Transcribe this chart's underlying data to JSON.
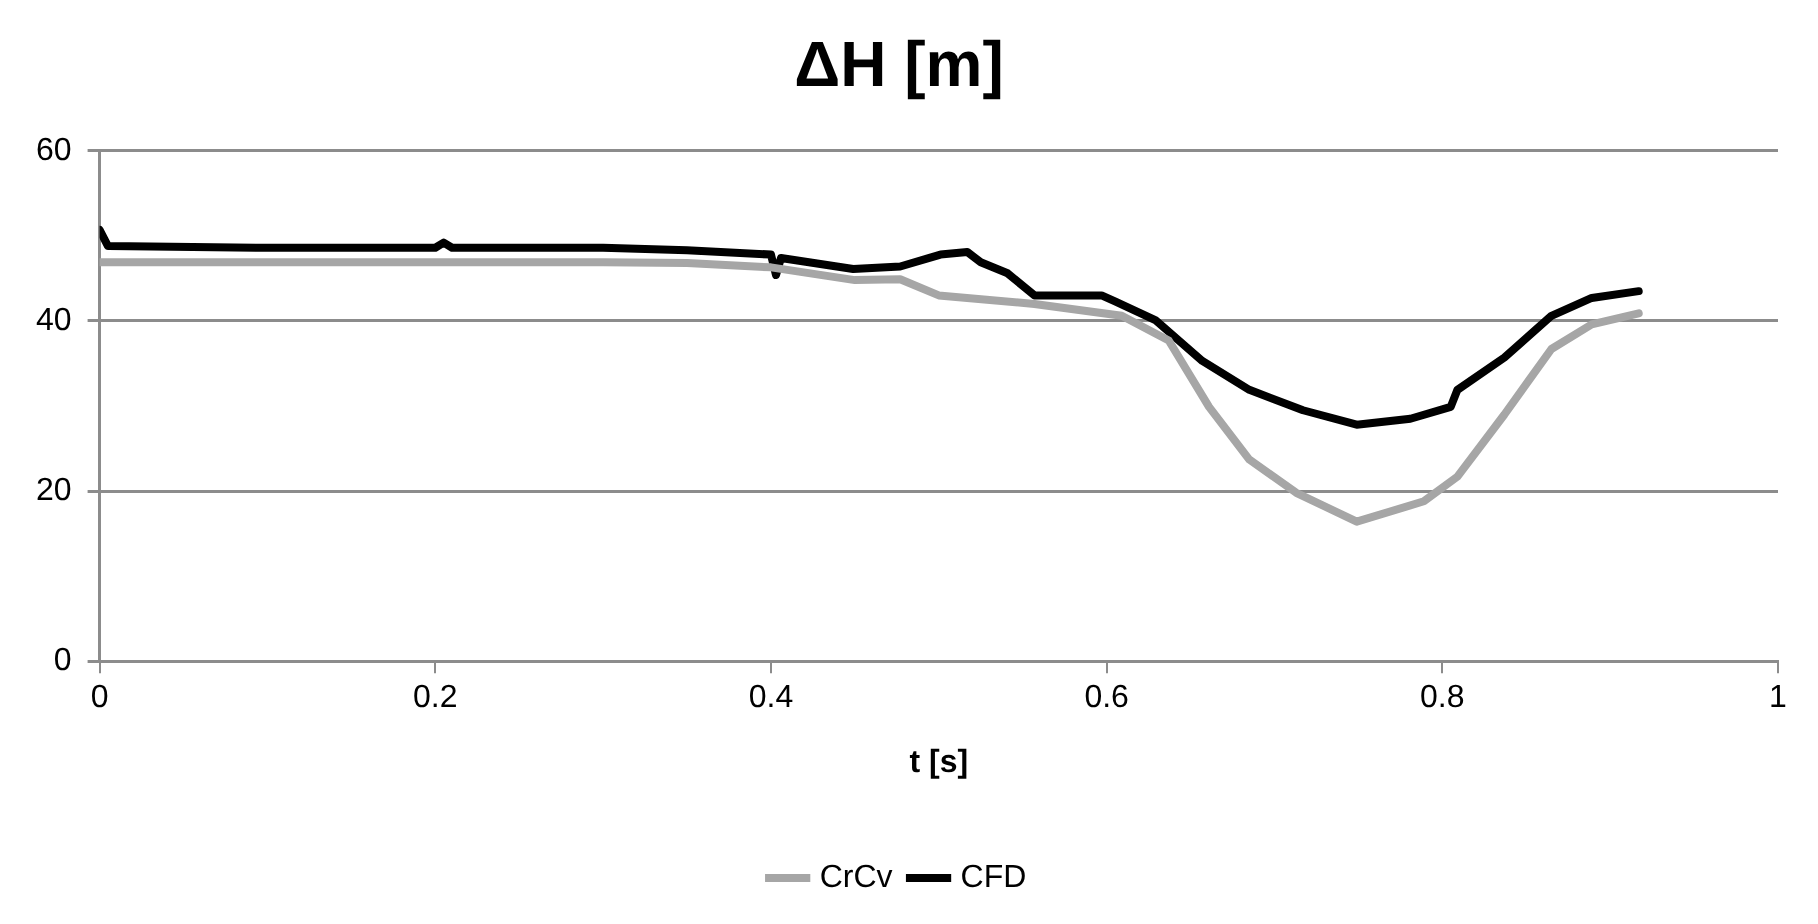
{
  "chart_data": {
    "type": "line",
    "title": "ΔH [m]",
    "xlabel": "t [s]",
    "xlim": [
      0,
      1
    ],
    "xticks": [
      0,
      0.2,
      0.4,
      0.6,
      0.8,
      1
    ],
    "ylim": [
      0,
      60
    ],
    "yticks": [
      0,
      20,
      40,
      60
    ],
    "grid": "y",
    "legend": "bottom",
    "marker": "none",
    "line_style": "solid",
    "series": [
      {
        "name": "CrCv",
        "color": "#a6a6a6",
        "x": [
          0,
          0.1,
          0.2,
          0.3,
          0.35,
          0.4,
          0.45,
          0.477,
          0.5,
          0.557,
          0.609,
          0.637,
          0.661,
          0.685,
          0.713,
          0.749,
          0.789,
          0.809,
          0.837,
          0.865,
          0.889,
          0.917
        ],
        "values": [
          46.9,
          46.9,
          46.9,
          46.9,
          46.8,
          46.3,
          44.8,
          44.9,
          43,
          42,
          40.6,
          37.7,
          29.9,
          23.7,
          19.8,
          16.4,
          18.8,
          21.7,
          29,
          36.7,
          39.6,
          40.9
        ]
      },
      {
        "name": "CFD",
        "color": "#000000",
        "x": [
          0,
          0.005,
          0.1,
          0.2,
          0.205,
          0.21,
          0.3,
          0.35,
          0.4,
          0.403,
          0.406,
          0.449,
          0.477,
          0.501,
          0.517,
          0.525,
          0.541,
          0.557,
          0.597,
          0.605,
          0.629,
          0.657,
          0.685,
          0.717,
          0.749,
          0.781,
          0.805,
          0.809,
          0.837,
          0.865,
          0.889,
          0.917
        ],
        "values": [
          50.7,
          48.8,
          48.6,
          48.6,
          49.2,
          48.6,
          48.6,
          48.3,
          47.8,
          45.4,
          47.4,
          46.1,
          46.4,
          47.8,
          48.1,
          46.9,
          45.6,
          43,
          43,
          42.3,
          40.1,
          35.3,
          31.9,
          29.5,
          27.8,
          28.5,
          29.9,
          31.9,
          35.7,
          40.6,
          42.7,
          43.5
        ]
      }
    ]
  }
}
